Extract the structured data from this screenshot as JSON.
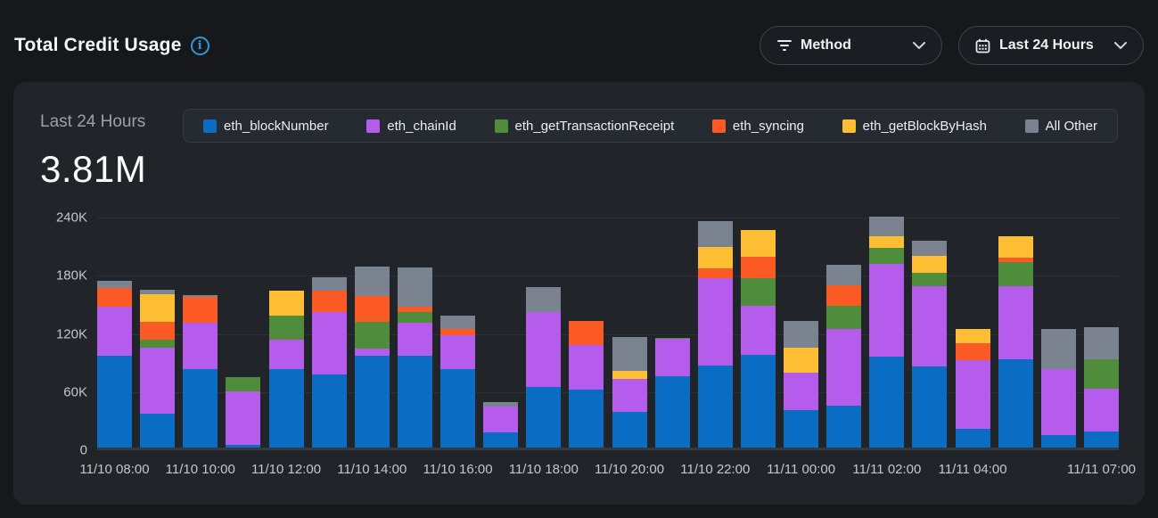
{
  "header": {
    "title": "Total Credit Usage",
    "method_filter_label": "Method",
    "time_filter_label": "Last 24 Hours"
  },
  "summary": {
    "period_label": "Last 24 Hours",
    "total": "3.81M"
  },
  "icons": {
    "info": "i"
  },
  "colors": {
    "page_bg": "#16181c",
    "panel_bg": "#212529",
    "accent_info": "#2b9ada",
    "grid": "#2c3137"
  },
  "chart_data": {
    "type": "bar",
    "stacked": true,
    "title": "Total Credit Usage",
    "values_unit": "thousands of credits",
    "ylim": [
      0,
      240000
    ],
    "yticks": [
      {
        "label": "240K",
        "value": 240
      },
      {
        "label": "180K",
        "value": 180
      },
      {
        "label": "120K",
        "value": 120
      },
      {
        "label": "60K",
        "value": 60
      },
      {
        "label": "0",
        "value": 0
      }
    ],
    "x": [
      "11/10 08:00",
      "11/10 09:00",
      "11/10 10:00",
      "11/10 11:00",
      "11/10 12:00",
      "11/10 13:00",
      "11/10 14:00",
      "11/10 15:00",
      "11/10 16:00",
      "11/10 17:00",
      "11/10 18:00",
      "11/10 19:00",
      "11/10 20:00",
      "11/10 21:00",
      "11/10 22:00",
      "11/10 23:00",
      "11/11 00:00",
      "11/11 01:00",
      "11/11 02:00",
      "11/11 03:00",
      "11/11 04:00",
      "11/11 05:00",
      "11/11 06:00",
      "11/11 07:00"
    ],
    "x_ticks": [
      {
        "index": 0,
        "label": "11/10 08:00"
      },
      {
        "index": 2,
        "label": "11/10 10:00"
      },
      {
        "index": 4,
        "label": "11/10 12:00"
      },
      {
        "index": 6,
        "label": "11/10 14:00"
      },
      {
        "index": 8,
        "label": "11/10 16:00"
      },
      {
        "index": 10,
        "label": "11/10 18:00"
      },
      {
        "index": 12,
        "label": "11/10 20:00"
      },
      {
        "index": 14,
        "label": "11/10 22:00"
      },
      {
        "index": 16,
        "label": "11/11 00:00"
      },
      {
        "index": 18,
        "label": "11/11 02:00"
      },
      {
        "index": 20,
        "label": "11/11 04:00"
      },
      {
        "index": 23,
        "label": "11/11 07:00"
      }
    ],
    "legend_position": "top",
    "series": [
      {
        "name": "eth_blockNumber",
        "color": "#0b6cc4",
        "values": [
          95,
          35,
          81,
          3,
          81,
          75,
          95,
          95,
          81,
          16,
          63,
          60,
          37,
          74,
          85,
          96,
          39,
          43,
          94,
          84,
          19,
          91,
          13,
          17
        ]
      },
      {
        "name": "eth_chainId",
        "color": "#b55ced",
        "values": [
          50,
          68,
          48,
          55,
          30,
          65,
          7,
          34,
          35,
          26,
          77,
          46,
          34,
          38,
          90,
          50,
          38,
          79,
          95,
          82,
          71,
          75,
          68,
          44
        ]
      },
      {
        "name": "eth_getTransactionReceipt",
        "color": "#4f8c3c",
        "values": [
          0,
          8,
          0,
          15,
          25,
          0,
          28,
          11,
          0,
          0,
          0,
          0,
          0,
          1,
          0,
          29,
          0,
          24,
          17,
          14,
          0,
          25,
          0,
          30
        ]
      },
      {
        "name": "eth_syncing",
        "color": "#fb5a24",
        "values": [
          20,
          19,
          26,
          0,
          0,
          22,
          26,
          5,
          6,
          0,
          0,
          25,
          0,
          0,
          10,
          22,
          0,
          21,
          0,
          0,
          18,
          5,
          0,
          0
        ]
      },
      {
        "name": "eth_getBlockByHash",
        "color": "#fdbe33",
        "values": [
          0,
          28,
          0,
          0,
          26,
          0,
          0,
          0,
          0,
          0,
          0,
          0,
          8,
          0,
          22,
          27,
          26,
          0,
          12,
          18,
          14,
          22,
          0,
          0
        ]
      },
      {
        "name": "All Other",
        "color": "#7b8290",
        "values": [
          7,
          5,
          2,
          0,
          0,
          14,
          31,
          41,
          14,
          5,
          26,
          0,
          35,
          0,
          27,
          0,
          28,
          22,
          20,
          15,
          0,
          0,
          41,
          33
        ]
      }
    ]
  }
}
